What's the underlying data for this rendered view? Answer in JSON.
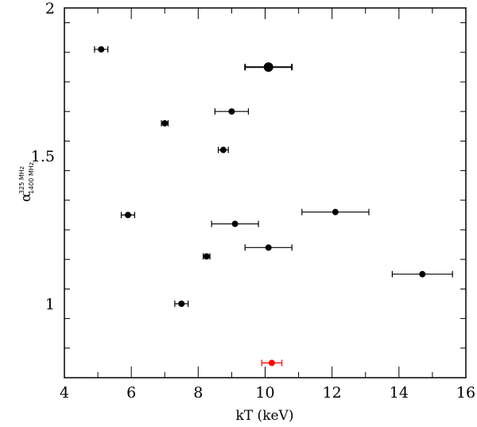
{
  "chart_data": {
    "type": "scatter",
    "title": "",
    "xlabel": "kT (keV)",
    "ylabel": {
      "symbol": "α",
      "superscript": "325 MHz",
      "subscript": "1400 MHz"
    },
    "xlim": [
      4,
      16
    ],
    "ylim": [
      0.75,
      2.0
    ],
    "x_ticks": [
      4,
      6,
      8,
      10,
      12,
      14,
      16
    ],
    "x_tick_labels": [
      "4",
      "6",
      "8",
      "10",
      "12",
      "14",
      "16"
    ],
    "y_ticks": [
      1,
      1.5,
      2
    ],
    "y_tick_labels": [
      "1",
      "1.5",
      "2"
    ],
    "x_minor_step": 1,
    "y_minor_step": 0.1,
    "grid": false,
    "series": [
      {
        "color": "#000000",
        "points": [
          {
            "x": 5.1,
            "y": 1.86,
            "x_lo": 4.9,
            "x_hi": 5.3
          },
          {
            "x": 10.1,
            "y": 1.8,
            "x_lo": 9.4,
            "x_hi": 10.8,
            "big": true
          },
          {
            "x": 9.0,
            "y": 1.65,
            "x_lo": 8.5,
            "x_hi": 9.5
          },
          {
            "x": 7.0,
            "y": 1.61,
            "x_lo": 6.9,
            "x_hi": 7.1
          },
          {
            "x": 8.75,
            "y": 1.52,
            "x_lo": 8.6,
            "x_hi": 8.9
          },
          {
            "x": 5.9,
            "y": 1.3,
            "x_lo": 5.7,
            "x_hi": 6.1
          },
          {
            "x": 12.1,
            "y": 1.31,
            "x_lo": 11.1,
            "x_hi": 13.1
          },
          {
            "x": 9.1,
            "y": 1.27,
            "x_lo": 8.4,
            "x_hi": 9.8
          },
          {
            "x": 10.1,
            "y": 1.19,
            "x_lo": 9.4,
            "x_hi": 10.8
          },
          {
            "x": 8.25,
            "y": 1.16,
            "x_lo": 8.15,
            "x_hi": 8.35
          },
          {
            "x": 14.7,
            "y": 1.1,
            "x_lo": 13.8,
            "x_hi": 15.6
          },
          {
            "x": 7.5,
            "y": 1.0,
            "x_lo": 7.3,
            "x_hi": 7.7
          }
        ]
      },
      {
        "color": "#ff0000",
        "points": [
          {
            "x": 10.2,
            "y": 0.8,
            "x_lo": 9.9,
            "x_hi": 10.5
          }
        ]
      }
    ]
  }
}
